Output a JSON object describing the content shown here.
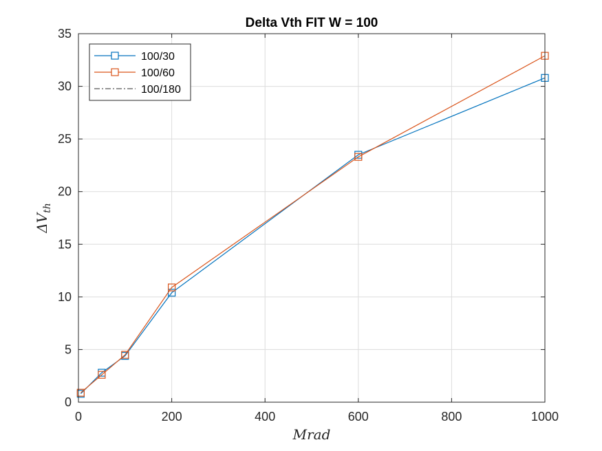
{
  "chart_data": {
    "type": "line",
    "title": "Delta Vth FIT W = 100",
    "xlabel": "Mrad",
    "ylabel_main": "ΔV",
    "ylabel_sub": "th",
    "xlim": [
      0,
      1000
    ],
    "ylim": [
      0,
      35
    ],
    "xticks": [
      0,
      200,
      400,
      600,
      800,
      1000
    ],
    "yticks": [
      0,
      5,
      10,
      15,
      20,
      25,
      30,
      35
    ],
    "grid": true,
    "legend_position": "top-left",
    "series": [
      {
        "name": "100/30",
        "color": "#0072BD",
        "marker": "square",
        "line": "solid",
        "x": [
          5,
          50,
          100,
          200,
          600,
          1000
        ],
        "y": [
          0.8,
          2.8,
          4.4,
          10.4,
          23.5,
          30.8
        ]
      },
      {
        "name": "100/60",
        "color": "#D95319",
        "marker": "square",
        "line": "solid",
        "x": [
          5,
          50,
          100,
          200,
          600,
          1000
        ],
        "y": [
          0.9,
          2.6,
          4.5,
          10.9,
          23.3,
          32.9
        ]
      },
      {
        "name": "100/180",
        "color": "#555555",
        "marker": "none",
        "line": "dash-dot",
        "x": [],
        "y": []
      }
    ]
  }
}
